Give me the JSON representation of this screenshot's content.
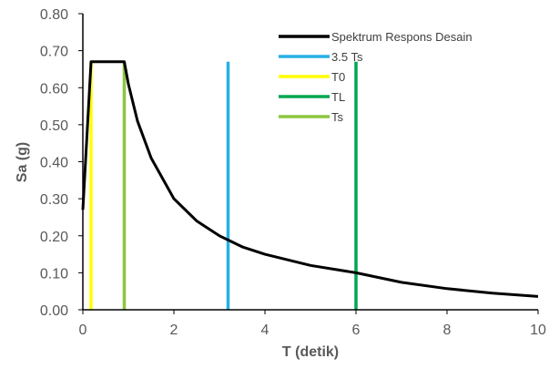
{
  "chart_data": {
    "type": "line",
    "xlabel": "T (detik)",
    "ylabel": "Sa (g)",
    "xlim": [
      0,
      10
    ],
    "ylim": [
      0,
      0.8
    ],
    "x_ticks": [
      "0",
      "2",
      "4",
      "6",
      "8",
      "10"
    ],
    "y_ticks": [
      "0.00",
      "0.10",
      "0.20",
      "0.30",
      "0.40",
      "0.50",
      "0.60",
      "0.70",
      "0.80"
    ],
    "grid": false,
    "legend_position": "top-right",
    "series": [
      {
        "name": "Spektrum Respons Desain",
        "color": "#000000",
        "x": [
          0,
          0.18,
          0.91,
          1.0,
          1.2,
          1.5,
          2.0,
          2.5,
          3.0,
          3.5,
          4.0,
          5.0,
          6.0,
          7.0,
          8.0,
          9.0,
          10.0
        ],
        "y": [
          0.27,
          0.67,
          0.67,
          0.61,
          0.51,
          0.41,
          0.3,
          0.24,
          0.2,
          0.17,
          0.15,
          0.12,
          0.1,
          0.074,
          0.057,
          0.045,
          0.036
        ]
      },
      {
        "name": "3.5 Ts",
        "color": "#26B0E6",
        "x": [
          3.19,
          3.19
        ],
        "y": [
          0,
          0.67
        ]
      },
      {
        "name": "T0",
        "color": "#FFFF00",
        "x": [
          0.18,
          0.18
        ],
        "y": [
          0,
          0.67
        ]
      },
      {
        "name": "TL",
        "color": "#00A650",
        "x": [
          6.0,
          6.0
        ],
        "y": [
          0,
          0.67
        ]
      },
      {
        "name": "Ts",
        "color": "#8DC63F",
        "x": [
          0.91,
          0.91
        ],
        "y": [
          0,
          0.67
        ]
      }
    ]
  }
}
